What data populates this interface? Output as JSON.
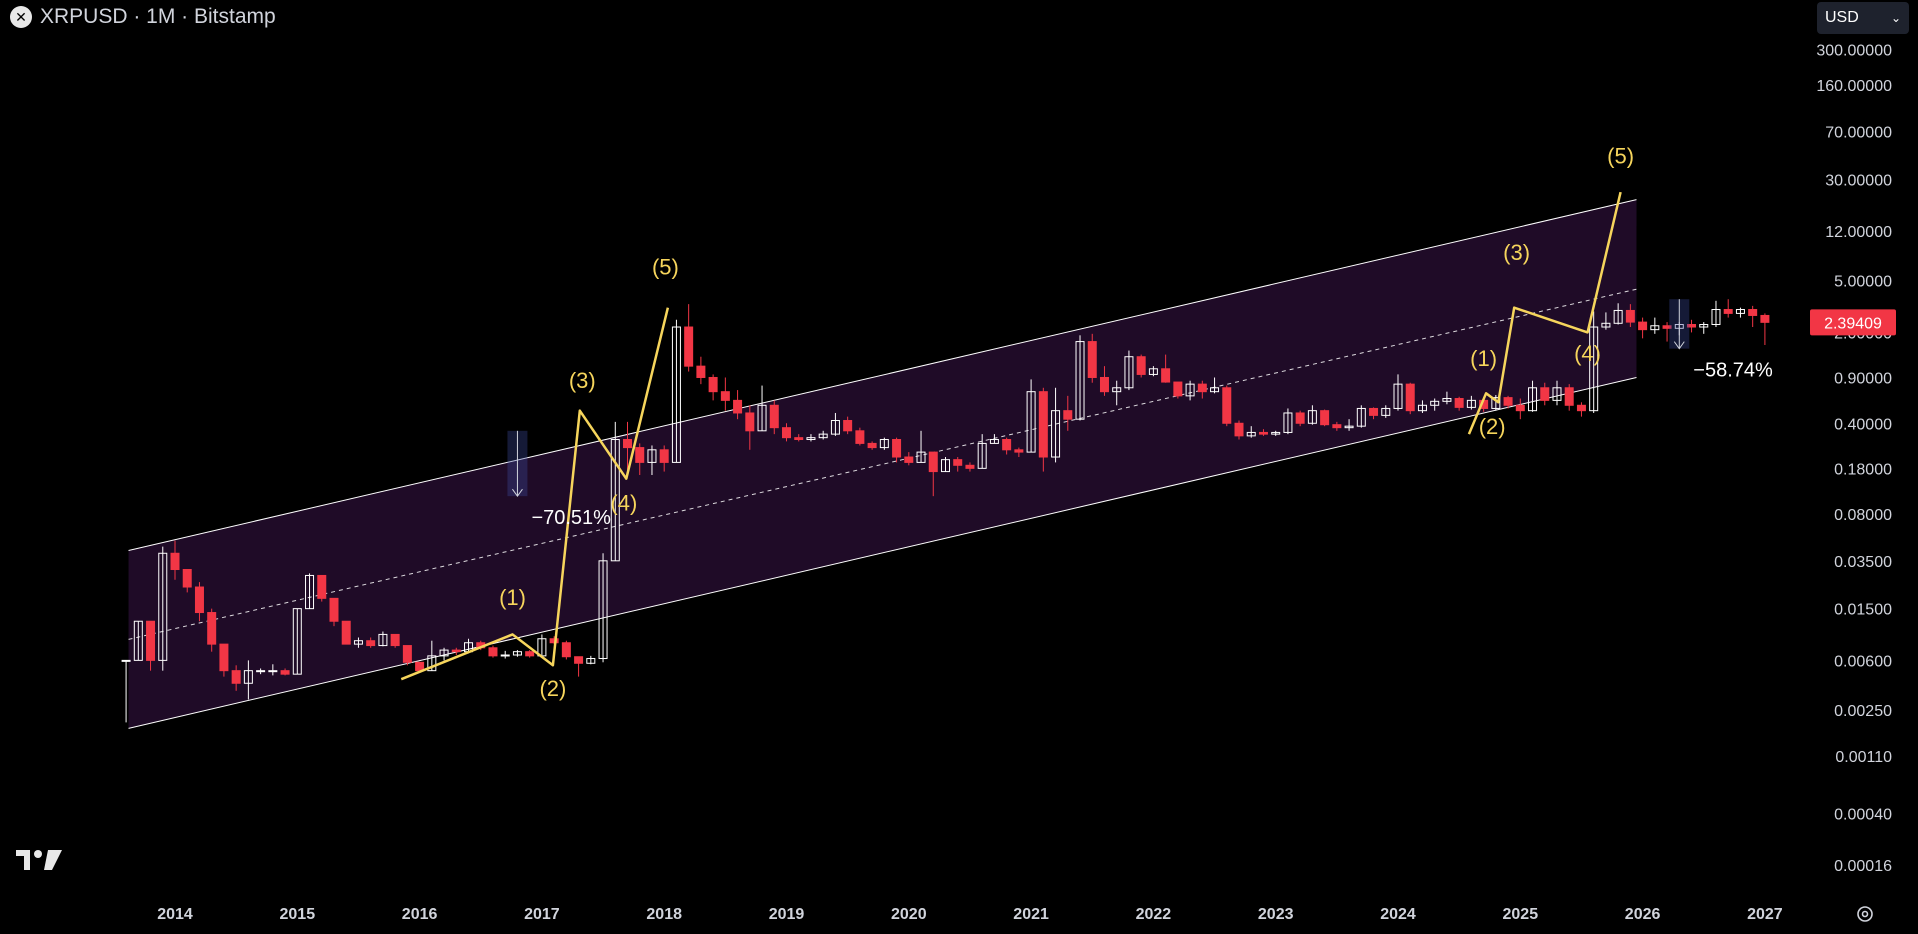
{
  "header": {
    "symbol_icon": "x-icon",
    "title": "XRPUSD · 1M · Bitstamp"
  },
  "currency": {
    "label": "USD",
    "icon": "chevron-down-icon"
  },
  "price_badge": {
    "label": "2.39409",
    "color": "#f23645"
  },
  "colors": {
    "up": "#ffffff",
    "down": "#f23645",
    "wave": "#f6d55c",
    "wave_label": "#f6d55c",
    "wave_label_muted": "#e8c37a",
    "channel_fill": "#1f0b27",
    "channel_line": "#ffffff",
    "background": "#000000"
  },
  "chart_data": {
    "type": "candlestick",
    "title": "XRPUSD · 1M · Bitstamp",
    "y_scale": "log",
    "y_ticks": [
      "300.00000",
      "160.00000",
      "70.00000",
      "30.00000",
      "12.00000",
      "5.00000",
      "2.00000",
      "0.90000",
      "0.40000",
      "0.18000",
      "0.08000",
      "0.03500",
      "0.01500",
      "0.00600",
      "0.00250",
      "0.00110",
      "0.00040",
      "0.00016"
    ],
    "y_tick_values": [
      300,
      160,
      70,
      30,
      12,
      5,
      2,
      0.9,
      0.4,
      0.18,
      0.08,
      0.035,
      0.015,
      0.006,
      0.0025,
      0.0011,
      0.0004,
      0.00016
    ],
    "x_ticks": [
      "2014",
      "2015",
      "2016",
      "2017",
      "2018",
      "2019",
      "2020",
      "2021",
      "2022",
      "2023",
      "2024",
      "2025",
      "2026",
      "2027"
    ],
    "candles": [
      [
        2013.6,
        0.006,
        0.006,
        0.002,
        0.006
      ],
      [
        2013.7,
        0.006,
        0.012,
        0.006,
        0.012
      ],
      [
        2013.8,
        0.012,
        0.012,
        0.005,
        0.006
      ],
      [
        2013.9,
        0.006,
        0.045,
        0.005,
        0.04
      ],
      [
        2014.0,
        0.04,
        0.05,
        0.025,
        0.03
      ],
      [
        2014.1,
        0.03,
        0.03,
        0.02,
        0.022
      ],
      [
        2014.2,
        0.022,
        0.024,
        0.012,
        0.014
      ],
      [
        2014.3,
        0.014,
        0.015,
        0.007,
        0.008
      ],
      [
        2014.4,
        0.008,
        0.008,
        0.0045,
        0.005
      ],
      [
        2014.5,
        0.005,
        0.0055,
        0.0035,
        0.004
      ],
      [
        2014.6,
        0.004,
        0.006,
        0.003,
        0.005
      ],
      [
        2014.7,
        0.005,
        0.0052,
        0.0047,
        0.005
      ],
      [
        2014.8,
        0.005,
        0.0056,
        0.0046,
        0.005
      ],
      [
        2014.9,
        0.005,
        0.0052,
        0.0046,
        0.0047
      ],
      [
        2015.0,
        0.0047,
        0.015,
        0.0047,
        0.015
      ],
      [
        2015.1,
        0.015,
        0.028,
        0.015,
        0.027
      ],
      [
        2015.2,
        0.027,
        0.027,
        0.017,
        0.018
      ],
      [
        2015.3,
        0.018,
        0.018,
        0.011,
        0.012
      ],
      [
        2015.4,
        0.012,
        0.012,
        0.008,
        0.008
      ],
      [
        2015.5,
        0.008,
        0.009,
        0.0075,
        0.0085
      ],
      [
        2015.6,
        0.0085,
        0.009,
        0.0075,
        0.0078
      ],
      [
        2015.7,
        0.0078,
        0.01,
        0.0077,
        0.0095
      ],
      [
        2015.8,
        0.0095,
        0.0095,
        0.0075,
        0.0078
      ],
      [
        2015.9,
        0.0078,
        0.0078,
        0.0055,
        0.0058
      ],
      [
        2016.0,
        0.0058,
        0.0058,
        0.0048,
        0.005
      ],
      [
        2016.1,
        0.005,
        0.0085,
        0.005,
        0.0065
      ],
      [
        2016.2,
        0.0065,
        0.0075,
        0.006,
        0.0072
      ],
      [
        2016.3,
        0.0072,
        0.0075,
        0.0066,
        0.007
      ],
      [
        2016.4,
        0.007,
        0.0088,
        0.0068,
        0.0082
      ],
      [
        2016.5,
        0.0082,
        0.0085,
        0.0072,
        0.0075
      ],
      [
        2016.6,
        0.0075,
        0.0078,
        0.0063,
        0.0065
      ],
      [
        2016.7,
        0.0065,
        0.0071,
        0.0062,
        0.0066
      ],
      [
        2016.8,
        0.0066,
        0.0072,
        0.0064,
        0.007
      ],
      [
        2016.9,
        0.007,
        0.0072,
        0.0063,
        0.0065
      ],
      [
        2017.0,
        0.0065,
        0.0095,
        0.0064,
        0.0088
      ],
      [
        2017.1,
        0.0088,
        0.0092,
        0.008,
        0.0082
      ],
      [
        2017.2,
        0.0082,
        0.0085,
        0.0061,
        0.0064
      ],
      [
        2017.3,
        0.0064,
        0.0064,
        0.0045,
        0.0057
      ],
      [
        2017.4,
        0.0057,
        0.0065,
        0.0056,
        0.0062
      ],
      [
        2017.5,
        0.0062,
        0.04,
        0.0058,
        0.035
      ],
      [
        2017.6,
        0.035,
        0.41,
        0.035,
        0.3
      ],
      [
        2017.7,
        0.3,
        0.41,
        0.16,
        0.26
      ],
      [
        2017.8,
        0.26,
        0.28,
        0.16,
        0.2
      ],
      [
        2017.9,
        0.2,
        0.27,
        0.16,
        0.25
      ],
      [
        2018.0,
        0.25,
        0.27,
        0.17,
        0.2
      ],
      [
        2018.1,
        0.2,
        2.5,
        0.2,
        2.2
      ],
      [
        2018.2,
        2.2,
        3.3,
        1.0,
        1.1
      ],
      [
        2018.3,
        1.1,
        1.3,
        0.8,
        0.9
      ],
      [
        2018.4,
        0.9,
        0.95,
        0.6,
        0.7
      ],
      [
        2018.5,
        0.7,
        0.9,
        0.5,
        0.6
      ],
      [
        2018.6,
        0.6,
        0.72,
        0.43,
        0.48
      ],
      [
        2018.7,
        0.48,
        0.55,
        0.25,
        0.35
      ],
      [
        2018.8,
        0.35,
        0.78,
        0.35,
        0.55
      ],
      [
        2018.9,
        0.55,
        0.6,
        0.33,
        0.37
      ],
      [
        2019.0,
        0.37,
        0.4,
        0.29,
        0.31
      ],
      [
        2019.1,
        0.31,
        0.33,
        0.29,
        0.3
      ],
      [
        2019.2,
        0.3,
        0.33,
        0.29,
        0.31
      ],
      [
        2019.3,
        0.31,
        0.35,
        0.3,
        0.33
      ],
      [
        2019.4,
        0.33,
        0.48,
        0.32,
        0.42
      ],
      [
        2019.5,
        0.42,
        0.45,
        0.33,
        0.35
      ],
      [
        2019.6,
        0.35,
        0.37,
        0.27,
        0.28
      ],
      [
        2019.7,
        0.28,
        0.29,
        0.25,
        0.26
      ],
      [
        2019.8,
        0.26,
        0.31,
        0.25,
        0.3
      ],
      [
        2019.9,
        0.3,
        0.31,
        0.2,
        0.22
      ],
      [
        2020.0,
        0.22,
        0.24,
        0.19,
        0.2
      ],
      [
        2020.1,
        0.2,
        0.35,
        0.2,
        0.24
      ],
      [
        2020.2,
        0.24,
        0.24,
        0.11,
        0.17
      ],
      [
        2020.3,
        0.17,
        0.22,
        0.17,
        0.21
      ],
      [
        2020.4,
        0.21,
        0.22,
        0.17,
        0.19
      ],
      [
        2020.5,
        0.19,
        0.2,
        0.17,
        0.18
      ],
      [
        2020.6,
        0.18,
        0.33,
        0.18,
        0.28
      ],
      [
        2020.7,
        0.28,
        0.33,
        0.28,
        0.3
      ],
      [
        2020.8,
        0.3,
        0.31,
        0.23,
        0.25
      ],
      [
        2020.9,
        0.25,
        0.26,
        0.22,
        0.24
      ],
      [
        2021.0,
        0.24,
        0.87,
        0.24,
        0.7
      ],
      [
        2021.1,
        0.7,
        0.75,
        0.17,
        0.22
      ],
      [
        2021.2,
        0.22,
        0.75,
        0.2,
        0.5
      ],
      [
        2021.3,
        0.5,
        0.65,
        0.35,
        0.43
      ],
      [
        2021.4,
        0.43,
        1.9,
        0.42,
        1.7
      ],
      [
        2021.5,
        1.7,
        1.95,
        0.82,
        0.9
      ],
      [
        2021.6,
        0.9,
        1.1,
        0.65,
        0.7
      ],
      [
        2021.7,
        0.7,
        0.85,
        0.55,
        0.75
      ],
      [
        2021.8,
        0.75,
        1.45,
        0.72,
        1.3
      ],
      [
        2021.9,
        1.3,
        1.35,
        0.9,
        0.95
      ],
      [
        2022.0,
        0.95,
        1.1,
        0.92,
        1.05
      ],
      [
        2022.1,
        1.05,
        1.35,
        0.82,
        0.83
      ],
      [
        2022.2,
        0.83,
        0.83,
        0.62,
        0.65
      ],
      [
        2022.3,
        0.65,
        0.85,
        0.6,
        0.8
      ],
      [
        2022.4,
        0.8,
        0.85,
        0.62,
        0.7
      ],
      [
        2022.5,
        0.7,
        0.9,
        0.68,
        0.75
      ],
      [
        2022.6,
        0.75,
        0.78,
        0.38,
        0.4
      ],
      [
        2022.7,
        0.4,
        0.42,
        0.3,
        0.32
      ],
      [
        2022.8,
        0.32,
        0.38,
        0.31,
        0.34
      ],
      [
        2022.9,
        0.34,
        0.36,
        0.32,
        0.33
      ],
      [
        2023.0,
        0.33,
        0.35,
        0.32,
        0.34
      ],
      [
        2023.1,
        0.34,
        0.52,
        0.33,
        0.48
      ],
      [
        2023.2,
        0.48,
        0.5,
        0.38,
        0.4
      ],
      [
        2023.3,
        0.4,
        0.55,
        0.39,
        0.5
      ],
      [
        2023.4,
        0.5,
        0.51,
        0.38,
        0.39
      ],
      [
        2023.5,
        0.39,
        0.41,
        0.35,
        0.37
      ],
      [
        2023.6,
        0.37,
        0.43,
        0.35,
        0.38
      ],
      [
        2023.7,
        0.38,
        0.55,
        0.37,
        0.52
      ],
      [
        2023.8,
        0.52,
        0.53,
        0.43,
        0.46
      ],
      [
        2023.9,
        0.46,
        0.55,
        0.44,
        0.52
      ],
      [
        2024.0,
        0.52,
        0.95,
        0.5,
        0.8
      ],
      [
        2024.1,
        0.8,
        0.82,
        0.47,
        0.5
      ],
      [
        2024.2,
        0.5,
        0.6,
        0.48,
        0.55
      ],
      [
        2024.3,
        0.55,
        0.62,
        0.5,
        0.59
      ],
      [
        2024.4,
        0.59,
        0.7,
        0.56,
        0.62
      ],
      [
        2024.5,
        0.62,
        0.64,
        0.5,
        0.53
      ],
      [
        2024.6,
        0.53,
        0.65,
        0.51,
        0.6
      ],
      [
        2024.7,
        0.6,
        0.63,
        0.49,
        0.52
      ],
      [
        2024.8,
        0.52,
        0.66,
        0.5,
        0.63
      ],
      [
        2024.9,
        0.63,
        0.65,
        0.52,
        0.55
      ],
      [
        2025.0,
        0.55,
        0.62,
        0.43,
        0.5
      ],
      [
        2025.1,
        0.5,
        0.85,
        0.49,
        0.75
      ],
      [
        2025.2,
        0.75,
        0.82,
        0.55,
        0.6
      ],
      [
        2025.3,
        0.6,
        0.85,
        0.55,
        0.75
      ],
      [
        2025.4,
        0.75,
        0.8,
        0.5,
        0.55
      ],
      [
        2025.5,
        0.55,
        0.58,
        0.45,
        0.5
      ],
      [
        2025.6,
        0.5,
        2.9,
        0.48,
        2.2
      ],
      [
        2025.7,
        2.2,
        2.85,
        2.1,
        2.35
      ],
      [
        2025.8,
        2.35,
        3.35,
        2.3,
        2.95
      ],
      [
        2025.9,
        2.95,
        3.3,
        2.2,
        2.4
      ],
      [
        2026.0,
        2.4,
        2.6,
        1.8,
        2.1
      ],
      [
        2026.1,
        2.1,
        2.6,
        1.95,
        2.25
      ],
      [
        2026.2,
        2.25,
        2.4,
        1.7,
        2.15
      ],
      [
        2026.3,
        2.15,
        2.4,
        1.9,
        2.3
      ],
      [
        2026.4,
        2.3,
        2.5,
        2.0,
        2.2
      ],
      [
        2026.5,
        2.2,
        2.4,
        1.95,
        2.3
      ],
      [
        2026.6,
        2.3,
        3.5,
        2.2,
        3.0
      ],
      [
        2026.7,
        3.0,
        3.6,
        2.6,
        2.8
      ],
      [
        2026.8,
        2.8,
        3.1,
        2.6,
        3.0
      ],
      [
        2026.9,
        3.0,
        3.2,
        2.2,
        2.7
      ],
      [
        2027.0,
        2.7,
        2.8,
        1.6,
        2.39
      ]
    ],
    "channel": {
      "upper": [
        [
          2013.62,
          0.042
        ],
        [
          2025.95,
          21
        ]
      ],
      "lower": [
        [
          2013.62,
          0.0018
        ],
        [
          2025.95,
          0.9
        ]
      ],
      "mid": [
        [
          2013.62,
          0.0087
        ],
        [
          2025.95,
          4.3
        ]
      ]
    },
    "wave_lines": [
      {
        "points": [
          [
            2015.85,
            0.0043
          ],
          [
            2016.76,
            0.0095
          ],
          [
            2017.09,
            0.0055
          ],
          [
            2017.31,
            0.5
          ],
          [
            2017.69,
            0.15
          ],
          [
            2018.03,
            3.1
          ]
        ]
      },
      {
        "points": [
          [
            2024.58,
            0.33
          ],
          [
            2024.72,
            0.68
          ],
          [
            2024.82,
            0.58
          ],
          [
            2024.95,
            3.1
          ],
          [
            2025.55,
            2.0
          ],
          [
            2025.82,
            24
          ]
        ]
      }
    ],
    "wave_labels": [
      {
        "text": "(1)",
        "x": 2016.76,
        "y": 0.016
      },
      {
        "text": "(2)",
        "x": 2017.09,
        "y": 0.0032
      },
      {
        "text": "(3)",
        "x": 2017.33,
        "y": 0.75
      },
      {
        "text": "(4)",
        "x": 2017.67,
        "y": 0.085
      },
      {
        "text": "(5)",
        "x": 2018.01,
        "y": 5.6
      },
      {
        "text": "(1)",
        "x": 2024.7,
        "y": 1.1
      },
      {
        "text": "(2)",
        "x": 2024.77,
        "y": 0.33
      },
      {
        "text": "(3)",
        "x": 2024.97,
        "y": 7.2
      },
      {
        "text": "(4)",
        "x": 2025.55,
        "y": 1.2
      },
      {
        "text": "(5)",
        "x": 2025.82,
        "y": 40
      }
    ],
    "drawdowns": [
      {
        "label": "−70.51%",
        "x": 2016.8,
        "from": 0.35,
        "to": 0.11
      },
      {
        "label": "−58.74%",
        "x": 2026.3,
        "from": 3.6,
        "to": 1.5
      }
    ]
  }
}
